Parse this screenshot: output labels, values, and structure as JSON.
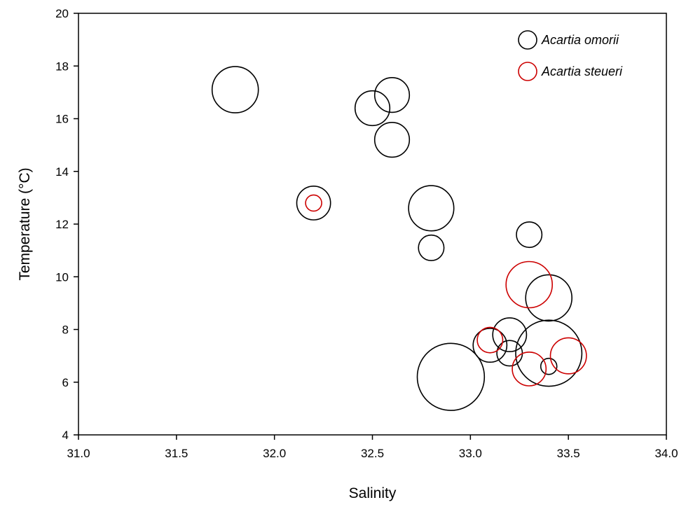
{
  "chart_data": {
    "type": "scatter",
    "subtype": "bubble",
    "title": "",
    "xlabel": "Salinity",
    "ylabel": "Temperature (°C)",
    "xlim": [
      31.0,
      34.0
    ],
    "ylim": [
      4,
      20
    ],
    "x_ticks": [
      "31.0",
      "31.5",
      "32.0",
      "32.5",
      "33.0",
      "33.5",
      "34.0"
    ],
    "y_ticks": [
      "4",
      "6",
      "8",
      "10",
      "12",
      "14",
      "16",
      "18",
      "20"
    ],
    "grid": false,
    "legend": "top-right",
    "series": [
      {
        "name": "Acartia omorii",
        "color": "#000000",
        "points": [
          {
            "x": 31.8,
            "y": 17.1,
            "size": 1.0
          },
          {
            "x": 32.2,
            "y": 12.8,
            "size": 0.73
          },
          {
            "x": 32.5,
            "y": 16.4,
            "size": 0.75
          },
          {
            "x": 32.6,
            "y": 16.9,
            "size": 0.75
          },
          {
            "x": 32.6,
            "y": 15.2,
            "size": 0.75
          },
          {
            "x": 32.8,
            "y": 12.6,
            "size": 0.98
          },
          {
            "x": 32.8,
            "y": 11.1,
            "size": 0.55
          },
          {
            "x": 33.3,
            "y": 11.6,
            "size": 0.55
          },
          {
            "x": 33.4,
            "y": 9.2,
            "size": 1.0
          },
          {
            "x": 33.2,
            "y": 7.8,
            "size": 0.73
          },
          {
            "x": 33.1,
            "y": 7.4,
            "size": 0.73
          },
          {
            "x": 33.2,
            "y": 7.1,
            "size": 0.55
          },
          {
            "x": 32.9,
            "y": 6.2,
            "size": 1.45
          },
          {
            "x": 33.4,
            "y": 7.1,
            "size": 1.43
          },
          {
            "x": 33.4,
            "y": 6.6,
            "size": 0.35
          }
        ]
      },
      {
        "name": "Acartia steueri",
        "color": "#cc0000",
        "points": [
          {
            "x": 32.2,
            "y": 12.8,
            "size": 0.35
          },
          {
            "x": 33.3,
            "y": 9.7,
            "size": 1.0
          },
          {
            "x": 33.1,
            "y": 7.6,
            "size": 0.55
          },
          {
            "x": 33.3,
            "y": 6.5,
            "size": 0.73
          },
          {
            "x": 33.5,
            "y": 7.0,
            "size": 0.78
          }
        ]
      }
    ]
  }
}
